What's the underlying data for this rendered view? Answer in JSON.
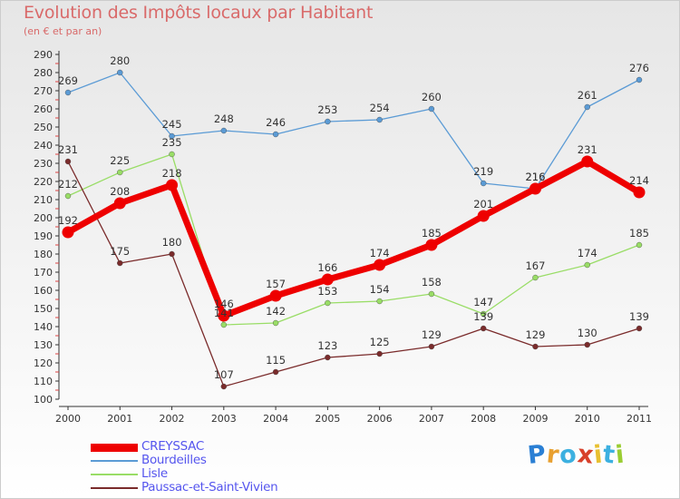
{
  "header": {
    "title": "Evolution des Impôts locaux par Habitant",
    "subtitle": "(en € et par an)"
  },
  "brand": {
    "letters": [
      "P",
      "r",
      "o",
      "x",
      "i",
      "t",
      "i"
    ],
    "colors": [
      "#2a7fd4",
      "#e8a030",
      "#3cb0e0",
      "#d8402a",
      "#e8c030",
      "#3cb0e0",
      "#9acd32"
    ]
  },
  "chart_data": {
    "type": "line",
    "title": "Evolution des Impôts locaux par Habitant",
    "subtitle": "(en € et par an)",
    "xlabel": "",
    "ylabel": "",
    "categories": [
      "2000",
      "2001",
      "2002",
      "2003",
      "2004",
      "2005",
      "2006",
      "2007",
      "2008",
      "2009",
      "2010",
      "2011"
    ],
    "ylim": [
      100,
      290
    ],
    "yticks": [
      "100",
      "110",
      "120",
      "130",
      "140",
      "150",
      "160",
      "170",
      "180",
      "190",
      "200",
      "210",
      "220",
      "230",
      "240",
      "250",
      "260",
      "270",
      "280",
      "290"
    ],
    "grid": false,
    "legend_position": "bottom-left",
    "series": [
      {
        "name": "CREYSSAC",
        "color": "#ee0000",
        "emphasis": true,
        "values": [
          192,
          208,
          218,
          146,
          157,
          166,
          174,
          185,
          201,
          216,
          231,
          214
        ],
        "labels": [
          "192",
          "208",
          "218",
          "146",
          "157",
          "166",
          "174",
          "185",
          "201",
          "216",
          "231",
          "214"
        ]
      },
      {
        "name": "Bourdeilles",
        "color": "#5b9bd5",
        "emphasis": false,
        "values": [
          269,
          280,
          245,
          248,
          246,
          253,
          254,
          260,
          219,
          216,
          261,
          276
        ],
        "labels": [
          "269",
          "280",
          "245",
          "248",
          "246",
          "253",
          "254",
          "260",
          "219",
          "216",
          "261",
          "276"
        ]
      },
      {
        "name": "Lisle",
        "color": "#99dd66",
        "emphasis": false,
        "values": [
          212,
          225,
          235,
          141,
          142,
          153,
          154,
          158,
          147,
          167,
          174,
          185
        ],
        "labels": [
          "212",
          "225",
          "235",
          "141",
          "142",
          "153",
          "154",
          "158",
          "147",
          "167",
          "174",
          "185"
        ]
      },
      {
        "name": "Paussac-et-Saint-Vivien",
        "color": "#7a2b2b",
        "emphasis": false,
        "values": [
          231,
          175,
          180,
          107,
          115,
          123,
          125,
          129,
          139,
          129,
          130,
          139
        ],
        "labels": [
          "231",
          "175",
          "180",
          "107",
          "115",
          "123",
          "125",
          "129",
          "139",
          "129",
          "130",
          "139"
        ]
      }
    ]
  }
}
